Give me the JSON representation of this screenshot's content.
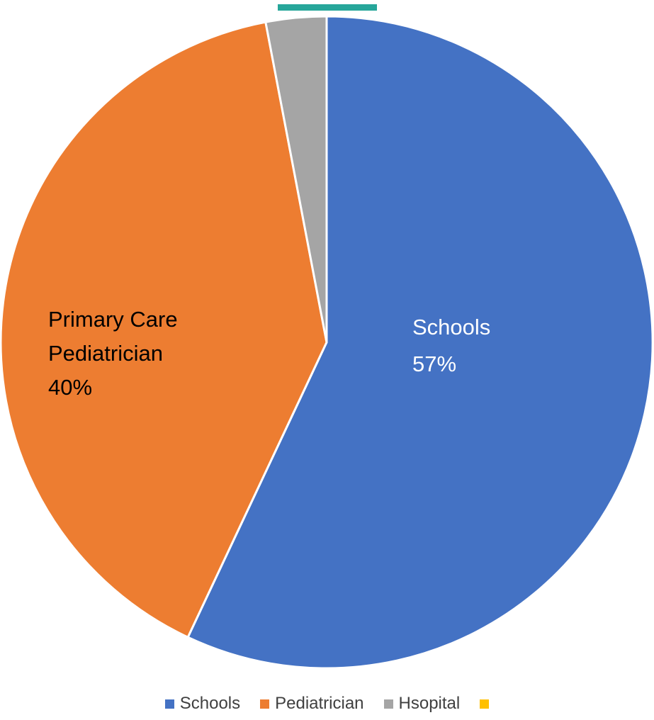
{
  "chart_data": {
    "type": "pie",
    "slices": [
      {
        "name": "Schools",
        "value": 57,
        "color": "#4472C4",
        "label_lines": [
          "Schools",
          "57%"
        ],
        "label_color": "#ffffff"
      },
      {
        "name": "Pediatrician",
        "value": 40,
        "color": "#ED7D31",
        "label_lines": [
          "Primary Care",
          "Pediatrician",
          "40%"
        ],
        "label_color": "#000000"
      },
      {
        "name": "Hsopital",
        "value": 3,
        "color": "#A5A5A5",
        "label_lines": [],
        "label_color": "#000000"
      },
      {
        "name": "",
        "value": 0,
        "color": "#FFC000",
        "label_lines": [],
        "label_color": "#000000"
      }
    ],
    "legend": {
      "placement": "bottom",
      "entries": [
        {
          "label": "Schools",
          "color": "#4472C4"
        },
        {
          "label": "Pediatrician",
          "color": "#ED7D31"
        },
        {
          "label": "Hsopital",
          "color": "#A5A5A5"
        },
        {
          "label": "",
          "color": "#FFC000"
        }
      ]
    },
    "accent_bar_color": "#26A69A"
  }
}
